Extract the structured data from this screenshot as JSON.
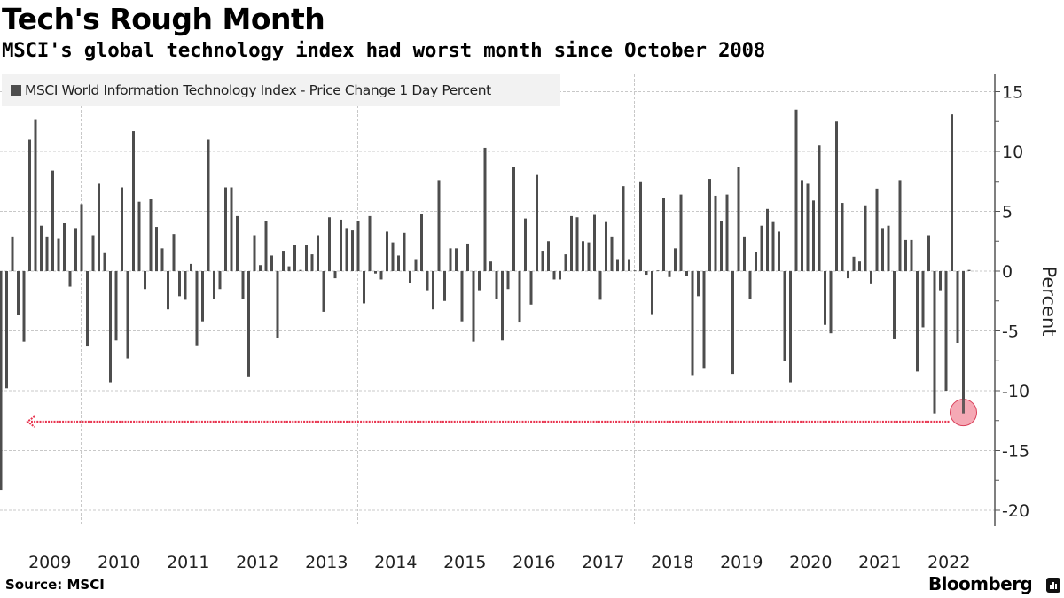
{
  "header": {
    "title": "Tech's Rough Month",
    "subtitle": "MSCI's global technology index had worst month since October 2008"
  },
  "legend": {
    "label": "MSCI World Information Technology Index - Price Change 1 Day Percent",
    "swatch_color": "#4d4d4d"
  },
  "footer": {
    "source": "Source: MSCI",
    "brand": "Bloomberg",
    "brand_icon": "bloomberg-terminal-icon"
  },
  "chart_data": {
    "type": "bar",
    "title": "Tech's Rough Month",
    "subtitle": "MSCI's global technology index had worst month since October 2008",
    "xlabel": "",
    "ylabel": "Percent",
    "ylim": [
      -21,
      16.5
    ],
    "yticks": [
      15,
      10,
      5,
      0,
      -5,
      -10,
      -15,
      -20
    ],
    "ytick_labels": [
      "15",
      "10",
      "5",
      "0",
      "-5",
      "-10",
      "-15",
      "-20"
    ],
    "xtick_labels": [
      "2009",
      "2010",
      "2011",
      "2012",
      "2013",
      "2014",
      "2015",
      "2016",
      "2017",
      "2018",
      "2019",
      "2020",
      "2021",
      "2022"
    ],
    "x_start": "2008-10",
    "frequency": "monthly",
    "grid": true,
    "legend_position": "top-left",
    "bar_color": "#4d4d4d",
    "highlight": {
      "label": "Worst month since October 2008",
      "index": 167,
      "value": -11.9,
      "compare_index": 0,
      "color": "#e8344f"
    },
    "series": [
      {
        "name": "MSCI World Information Technology Index - Price Change 1 Day Percent",
        "values": [
          -18.3,
          -9.8,
          2.9,
          -3.7,
          -5.9,
          11.0,
          12.7,
          3.8,
          2.9,
          8.4,
          2.7,
          4.0,
          -1.3,
          3.6,
          5.6,
          -6.3,
          3.0,
          7.3,
          1.5,
          -9.3,
          -5.8,
          7.0,
          -7.3,
          11.7,
          5.8,
          -1.5,
          6.0,
          3.7,
          1.9,
          -3.2,
          3.1,
          -2.1,
          -2.4,
          0.6,
          -6.2,
          -4.2,
          11.0,
          -2.3,
          -1.5,
          7.0,
          7.0,
          4.6,
          -2.3,
          -8.8,
          3.0,
          0.5,
          4.2,
          1.3,
          -5.6,
          1.7,
          0.4,
          2.2,
          0.1,
          2.2,
          1.4,
          3.0,
          -3.4,
          4.5,
          -0.6,
          4.3,
          3.6,
          3.4,
          4.2,
          -2.7,
          4.6,
          -0.2,
          -0.7,
          3.3,
          2.4,
          1.3,
          3.2,
          -1.0,
          1.0,
          4.8,
          -1.6,
          -3.2,
          7.6,
          -2.5,
          1.9,
          1.9,
          -4.2,
          2.3,
          -5.9,
          -1.6,
          10.3,
          0.8,
          -2.3,
          -5.8,
          -1.5,
          8.7,
          -4.3,
          4.4,
          -2.8,
          8.1,
          1.7,
          2.5,
          -0.7,
          -0.7,
          1.4,
          4.6,
          4.5,
          2.5,
          2.4,
          4.7,
          -2.4,
          4.1,
          2.9,
          1.0,
          7.1,
          1.0,
          0.0,
          7.5,
          -0.3,
          -3.6,
          0.05,
          6.1,
          -0.5,
          1.9,
          6.4,
          -0.4,
          -8.7,
          -2.1,
          -8.1,
          7.7,
          6.3,
          4.2,
          6.4,
          -8.6,
          8.7,
          2.9,
          -2.3,
          1.6,
          3.8,
          5.2,
          4.1,
          3.3,
          -7.5,
          -9.3,
          13.5,
          7.6,
          7.3,
          5.9,
          10.5,
          -4.5,
          -5.2,
          12.5,
          5.7,
          -0.6,
          1.2,
          0.8,
          5.5,
          -1.1,
          6.9,
          3.6,
          3.8,
          -5.7,
          7.6,
          2.6,
          2.6,
          -8.4,
          -4.7,
          3.0,
          -11.9,
          -1.6,
          -10.0,
          13.1,
          -6.0,
          -11.9,
          0.1
        ]
      }
    ]
  }
}
